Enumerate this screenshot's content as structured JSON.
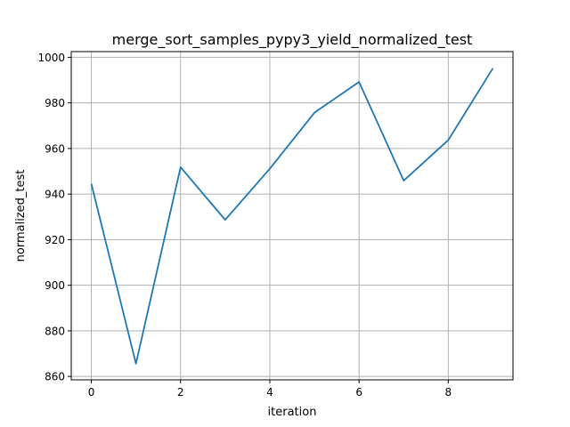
{
  "chart_data": {
    "type": "line",
    "title": "merge_sort_samples_pypy3_yield_normalized_test",
    "xlabel": "iteration",
    "ylabel": "normalized_test",
    "xlim": [
      -0.45,
      9.45
    ],
    "ylim": [
      858.5,
      1002.5
    ],
    "xticks": [
      0,
      2,
      4,
      6,
      8
    ],
    "yticks": [
      860,
      880,
      900,
      920,
      940,
      960,
      980,
      1000
    ],
    "grid": true,
    "legend": "none",
    "series": [
      {
        "color": "#1f77b4",
        "x": [
          0,
          1,
          2,
          3,
          4,
          5,
          6,
          7,
          8,
          9
        ],
        "y": [
          944.5,
          865.6,
          951.8,
          928.7,
          951.1,
          975.7,
          989.2,
          945.9,
          963.7,
          995.2
        ]
      }
    ]
  }
}
